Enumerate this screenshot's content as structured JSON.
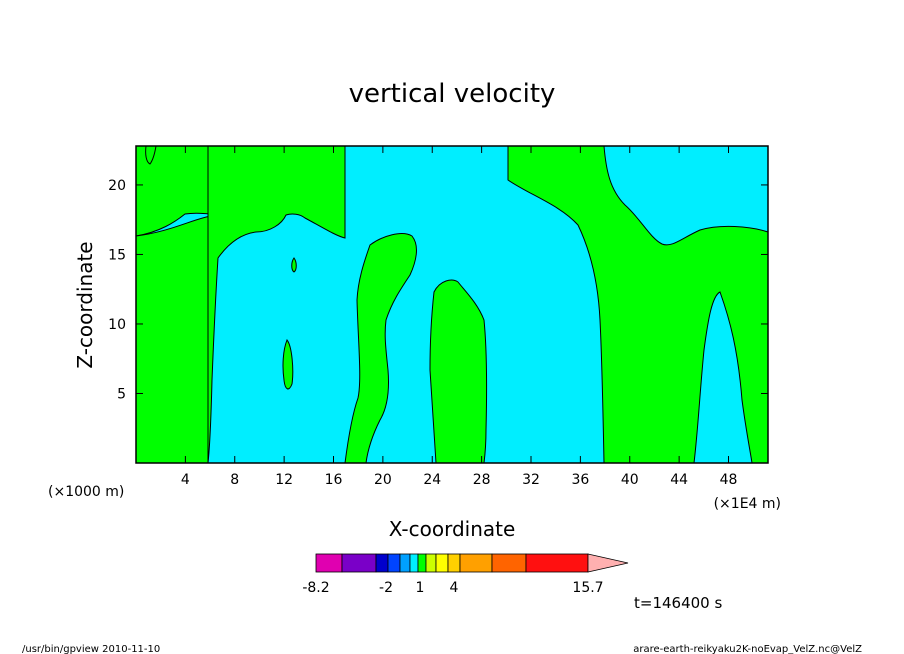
{
  "chart_data": {
    "type": "contour",
    "title": "vertical velocity",
    "xlabel": "X-coordinate",
    "ylabel": "Z-coordinate",
    "x_scale_note": "(×1E4 m)",
    "y_scale_note": "(×1000 m)",
    "x_ticks": [
      4,
      8,
      12,
      16,
      20,
      24,
      28,
      32,
      36,
      40,
      44,
      48
    ],
    "y_ticks": [
      5,
      10,
      15,
      20
    ],
    "xlim": [
      0,
      51.2
    ],
    "ylim": [
      0,
      22.8
    ],
    "fill_levels": {
      "positive": "#00ff00",
      "negative": "#00eeff"
    },
    "colorbar": {
      "labels": [
        "-8.2",
        "-2",
        "1",
        "4",
        "15.7"
      ],
      "colors": [
        "#e000b0",
        "#7a00c8",
        "#0000cc",
        "#0044ff",
        "#00a0ff",
        "#00eeff",
        "#00ff00",
        "#ccff00",
        "#ffff00",
        "#ffd000",
        "#ffa000",
        "#ff6400",
        "#ff1010",
        "#ff8080",
        "#ffb0b0"
      ]
    },
    "time_label": "t=146400 s"
  },
  "footer": {
    "left": "/usr/bin/gpview   2010-11-10",
    "right": "arare-earth-reikyaku2K-noEvap_VelZ.nc@VelZ"
  }
}
